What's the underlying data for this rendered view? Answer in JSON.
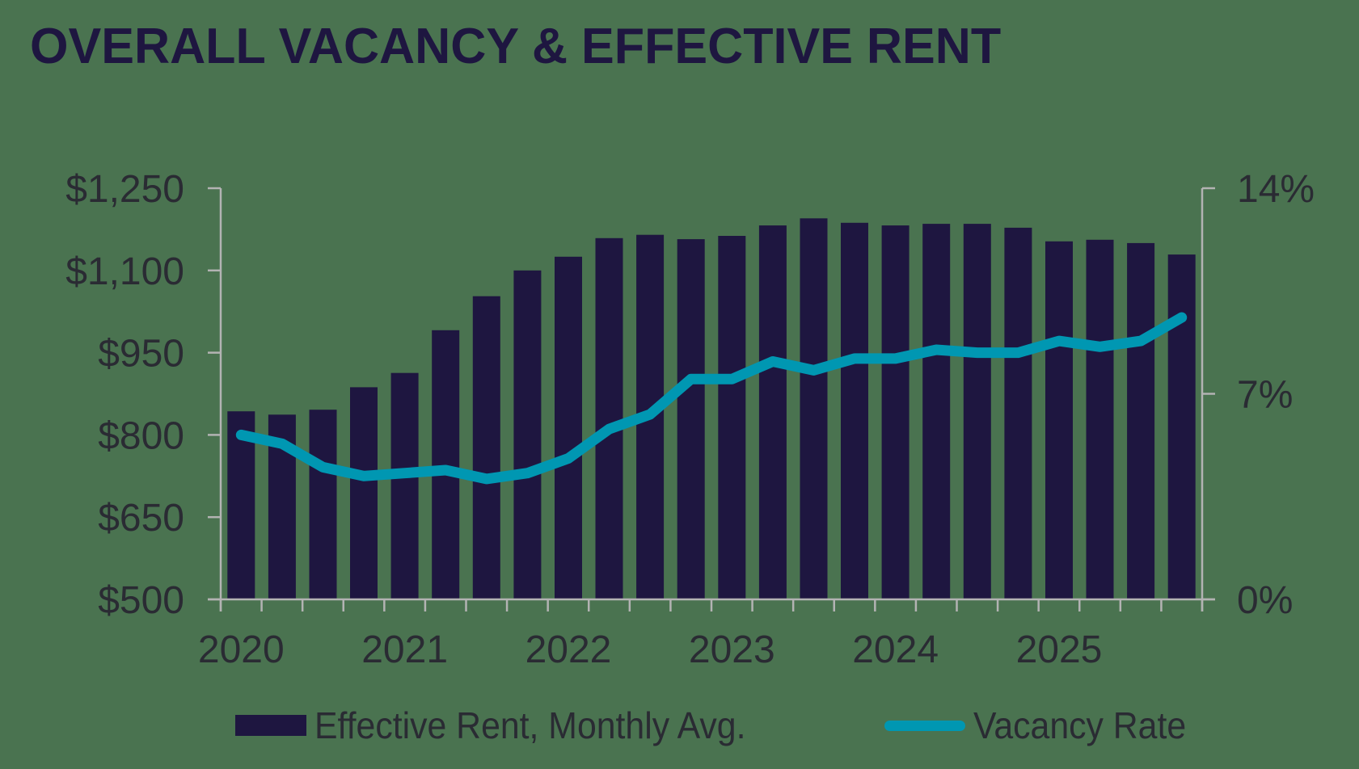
{
  "title": "OVERALL VACANCY & EFFECTIVE RENT",
  "colors": {
    "background": "#4a7350",
    "bar": "#1e1640",
    "line": "#0097b2",
    "axis": "#b3b3b3",
    "text": "#2a2b33",
    "title": "#1e1640"
  },
  "legend": {
    "bar_label": "Effective Rent, Monthly Avg.",
    "line_label": "Vacancy Rate"
  },
  "chart_data": {
    "type": "bar+line",
    "title": "OVERALL VACANCY & EFFECTIVE RENT",
    "xlabel": "",
    "ylabel_left": "Effective Rent, Monthly Avg.",
    "ylabel_right": "Vacancy Rate",
    "categories": [
      "2020 Q1",
      "2020 Q2",
      "2020 Q3",
      "2020 Q4",
      "2021 Q1",
      "2021 Q2",
      "2021 Q3",
      "2021 Q4",
      "2022 Q1",
      "2022 Q2",
      "2022 Q3",
      "2022 Q4",
      "2023 Q1",
      "2023 Q2",
      "2023 Q3",
      "2023 Q4",
      "2024 Q1",
      "2024 Q2",
      "2024 Q3",
      "2024 Q4",
      "2025 Q1",
      "2025 Q2",
      "2025 Q3",
      "2025 Q4"
    ],
    "x_tick_labels": [
      "2020",
      "2021",
      "2022",
      "2023",
      "2024",
      "2025"
    ],
    "y_left": {
      "min": 500,
      "max": 1250,
      "step": 150,
      "tick_labels": [
        "$500",
        "$650",
        "$800",
        "$950",
        "$1,100",
        "$1,250"
      ]
    },
    "y_right": {
      "min": 0,
      "max": 14,
      "step": 7,
      "tick_labels": [
        "0%",
        "7%",
        "14%"
      ]
    },
    "grid": false,
    "legend_position": "bottom",
    "series": [
      {
        "name": "Effective Rent, Monthly Avg.",
        "type": "bar",
        "axis": "left",
        "values": [
          843,
          837,
          846,
          887,
          913,
          991,
          1053,
          1100,
          1125,
          1159,
          1165,
          1157,
          1163,
          1182,
          1195,
          1187,
          1182,
          1185,
          1185,
          1178,
          1153,
          1156,
          1150,
          1129
        ]
      },
      {
        "name": "Vacancy Rate",
        "type": "line",
        "axis": "right",
        "unit": "%",
        "values": [
          5.6,
          5.3,
          4.5,
          4.2,
          4.3,
          4.4,
          4.1,
          4.3,
          4.8,
          5.8,
          6.3,
          7.5,
          7.5,
          8.1,
          7.8,
          8.2,
          8.2,
          8.5,
          8.4,
          8.4,
          8.8,
          8.6,
          8.8,
          9.6
        ]
      }
    ]
  }
}
